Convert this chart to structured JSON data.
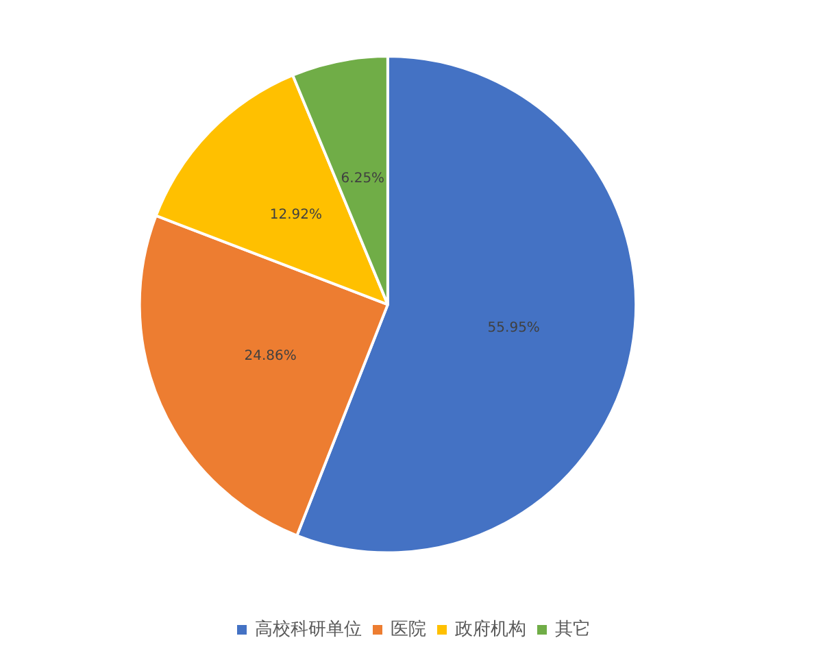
{
  "chart_data": {
    "type": "pie",
    "categories": [
      "高校科研单位",
      "医院",
      "政府机构",
      "其它"
    ],
    "values": [
      55.95,
      24.86,
      12.92,
      6.25
    ],
    "colors": [
      "#4472c4",
      "#ed7d31",
      "#ffc000",
      "#70ad47"
    ],
    "value_labels": [
      "55.95%",
      "24.86%",
      "12.92%",
      "6.25%"
    ],
    "legend": "bottom"
  }
}
